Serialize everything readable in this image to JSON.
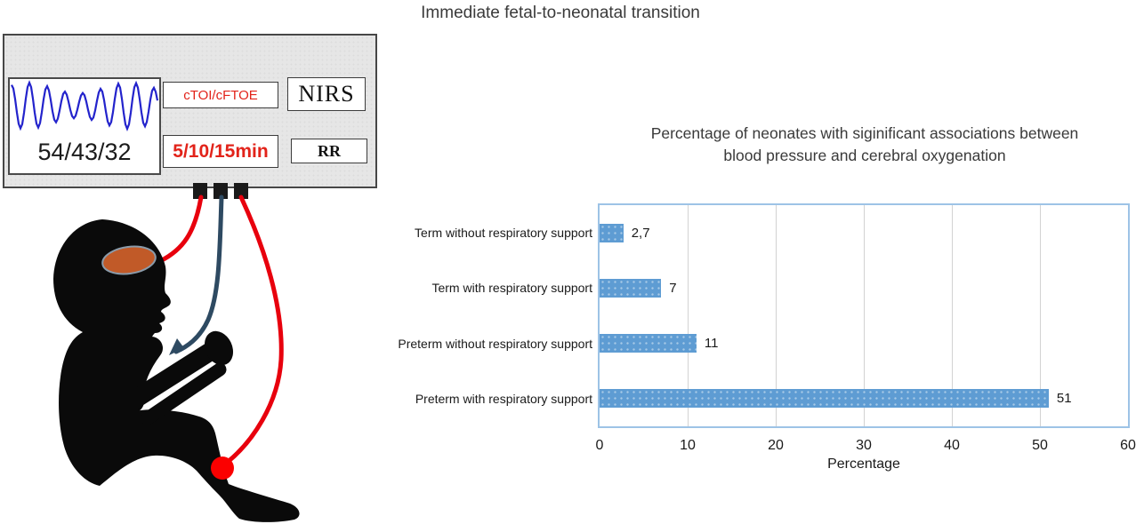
{
  "figure_title": "Immediate fetal-to-neonatal transition",
  "monitor": {
    "screen_value": "54/43/32",
    "labels": {
      "ctoi": "cTOI/cFTOE",
      "nirs": "NIRS",
      "time": "5/10/15min",
      "rr": "RR"
    },
    "colors": {
      "red_text": "#e2231a",
      "body_fill": "#e6e6e6",
      "waveform_blue": "#2323cc"
    }
  },
  "diagram_colors": {
    "silhouette": "#0a0a0a",
    "brain_sensor": "#c15a28",
    "cable_red": "#e8000d",
    "cable_blue": "#2e4a62",
    "leg_sensor_dot": "#fb0000"
  },
  "chart_data": {
    "type": "bar",
    "orientation": "horizontal",
    "title_lines": [
      "Percentage of neonates with siginificant associations between",
      "blood pressure and cerebral oxygenation"
    ],
    "categories": [
      "Term without respiratory support",
      "Term with respiratory support",
      "Preterm without respiratory support",
      "Preterm with respiratory support"
    ],
    "values": [
      2.7,
      7,
      11,
      51
    ],
    "value_labels": [
      "2,7",
      "7",
      "11",
      "51"
    ],
    "xlabel": "Percentage",
    "xlim": [
      0,
      60
    ],
    "x_ticks": [
      0,
      10,
      20,
      30,
      40,
      50,
      60
    ],
    "grid": true,
    "legend_position": "none",
    "bar_color": "#5e9cd3",
    "plot_border_color": "#9dc3e6",
    "gridline_color": "#d2d2d2"
  }
}
